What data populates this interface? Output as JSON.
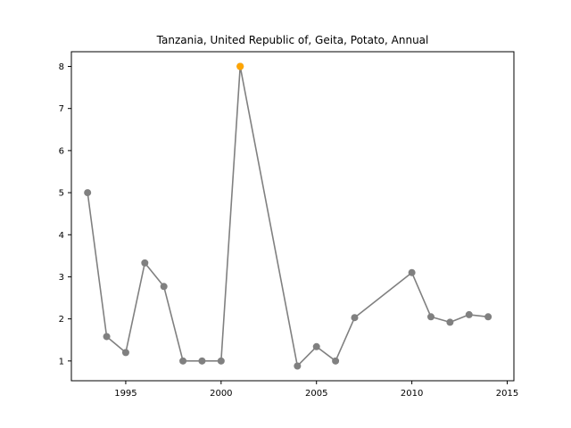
{
  "chart_data": {
    "type": "line",
    "title": "Tanzania, United Republic of, Geita, Potato, Annual",
    "xlabel": "",
    "ylabel": "",
    "xlim": [
      1992.15,
      2015.35
    ],
    "ylim": [
      0.53,
      8.35
    ],
    "x_ticks": [
      1995,
      2000,
      2005,
      2010,
      2015
    ],
    "y_ticks": [
      1,
      2,
      3,
      4,
      5,
      6,
      7,
      8
    ],
    "grid": false,
    "legend": "none",
    "line_color": "#808080",
    "highlight_color": "#ffa500",
    "series": [
      {
        "x": [
          1993,
          1994,
          1995,
          1996,
          1997,
          1998,
          1999,
          2000,
          2001,
          2004,
          2005,
          2006,
          2007,
          2010,
          2011,
          2012,
          2013,
          2014
        ],
        "values": [
          5.0,
          1.58,
          1.2,
          3.33,
          2.77,
          1.0,
          1.0,
          1.0,
          8.0,
          0.88,
          1.34,
          1.0,
          2.03,
          3.1,
          2.05,
          1.92,
          2.1,
          2.05
        ]
      }
    ],
    "highlight_points": [
      {
        "x": 2001,
        "y": 8.0
      }
    ]
  }
}
